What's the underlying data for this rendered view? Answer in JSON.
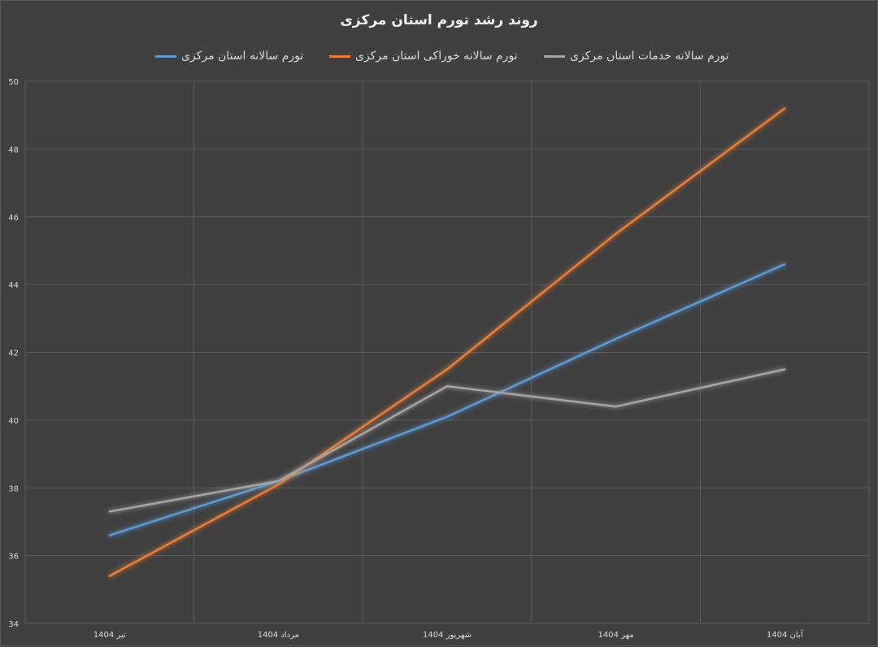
{
  "chart_data": {
    "type": "line",
    "title": "روند رشد تورم استان مرکزی",
    "categories": [
      "تیر 1404",
      "مرداد 1404",
      "شهریور 1404",
      "مهر 1404",
      "آبان 1404"
    ],
    "ylim": [
      34,
      50
    ],
    "y_ticks": [
      "34",
      "36",
      "38",
      "40",
      "42",
      "44",
      "46",
      "48",
      "50"
    ],
    "grid": true,
    "legend_position": "top",
    "series": [
      {
        "name": "تورم سالانه استان مرکزی",
        "color": "#5b9bd5",
        "values": [
          36.6,
          38.2,
          40.1,
          42.4,
          44.6
        ]
      },
      {
        "name": "تورم سالانه خوراکی استان مرکزی",
        "color": "#ed7d31",
        "values": [
          35.4,
          38.1,
          41.5,
          45.5,
          49.2
        ]
      },
      {
        "name": "تورم سالانه خدمات استان مرکزی",
        "color": "#a5a5a5",
        "values": [
          37.3,
          38.2,
          41.0,
          40.4,
          41.5
        ]
      }
    ]
  }
}
